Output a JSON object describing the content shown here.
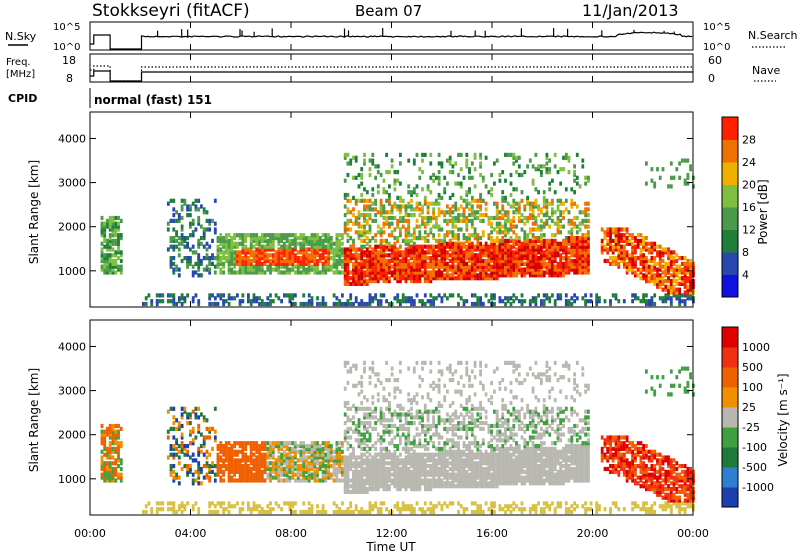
{
  "header": {
    "station": "Stokkseyri (fitACF)",
    "beam": "Beam 07",
    "date": "11/Jan/2013"
  },
  "sky_panel": {
    "left_label": "N.Sky",
    "left_ticks": [
      "10^5",
      "10^0"
    ],
    "right_ticks": [
      "10^5",
      "10^0"
    ],
    "right_label": "N.Search"
  },
  "freq_panel": {
    "left_label_line1": "Freq.",
    "left_label_line2": "[MHz]",
    "left_ticks": [
      "18",
      "8"
    ],
    "right_ticks": [
      "60",
      "0"
    ],
    "right_label": "Nave"
  },
  "cpid": {
    "label": "CPID",
    "mode": "normal (fast) 151"
  },
  "colors": {
    "power": [
      "#1010e0",
      "#2848b0",
      "#1e7f3a",
      "#4a9a4a",
      "#7fbf3f",
      "#f0b000",
      "#f07000",
      "#ff2000",
      "#d00000"
    ],
    "velocity": [
      "#1c3fb0",
      "#2f7fd0",
      "#1e7a3a",
      "#40a040",
      "#b8b8b0",
      "#f09000",
      "#f06000",
      "#f03010",
      "#e00000"
    ]
  },
  "chart_data": [
    {
      "type": "heatmap",
      "name": "Power",
      "ylabel": "Slant Range [km]",
      "xlabel": "",
      "yticks": [
        1000,
        2000,
        3000,
        4000
      ],
      "ylim": [
        180,
        4600
      ],
      "xticks": [
        "00:00",
        "04:00",
        "08:00",
        "12:00",
        "16:00",
        "20:00",
        "00:00"
      ],
      "xlim": [
        0,
        24
      ],
      "colorbar": {
        "label": "Power [dB]",
        "ticks": [
          "4",
          "8",
          "12",
          "16",
          "20",
          "24",
          "28"
        ],
        "range": [
          0,
          30
        ]
      }
    },
    {
      "type": "heatmap",
      "name": "Velocity",
      "ylabel": "Slant Range [km]",
      "xlabel": "Time UT",
      "yticks": [
        1000,
        2000,
        3000,
        4000
      ],
      "ylim": [
        180,
        4600
      ],
      "xticks": [
        "00:00",
        "04:00",
        "08:00",
        "12:00",
        "16:00",
        "20:00",
        "00:00"
      ],
      "xlim": [
        0,
        24
      ],
      "colorbar": {
        "label": "Velocity [m s⁻¹]",
        "ticks": [
          "1000",
          "500",
          "100",
          "25",
          "-25",
          "-100",
          "-500",
          "-1000"
        ],
        "range": [
          -1200,
          1200
        ]
      }
    }
  ]
}
